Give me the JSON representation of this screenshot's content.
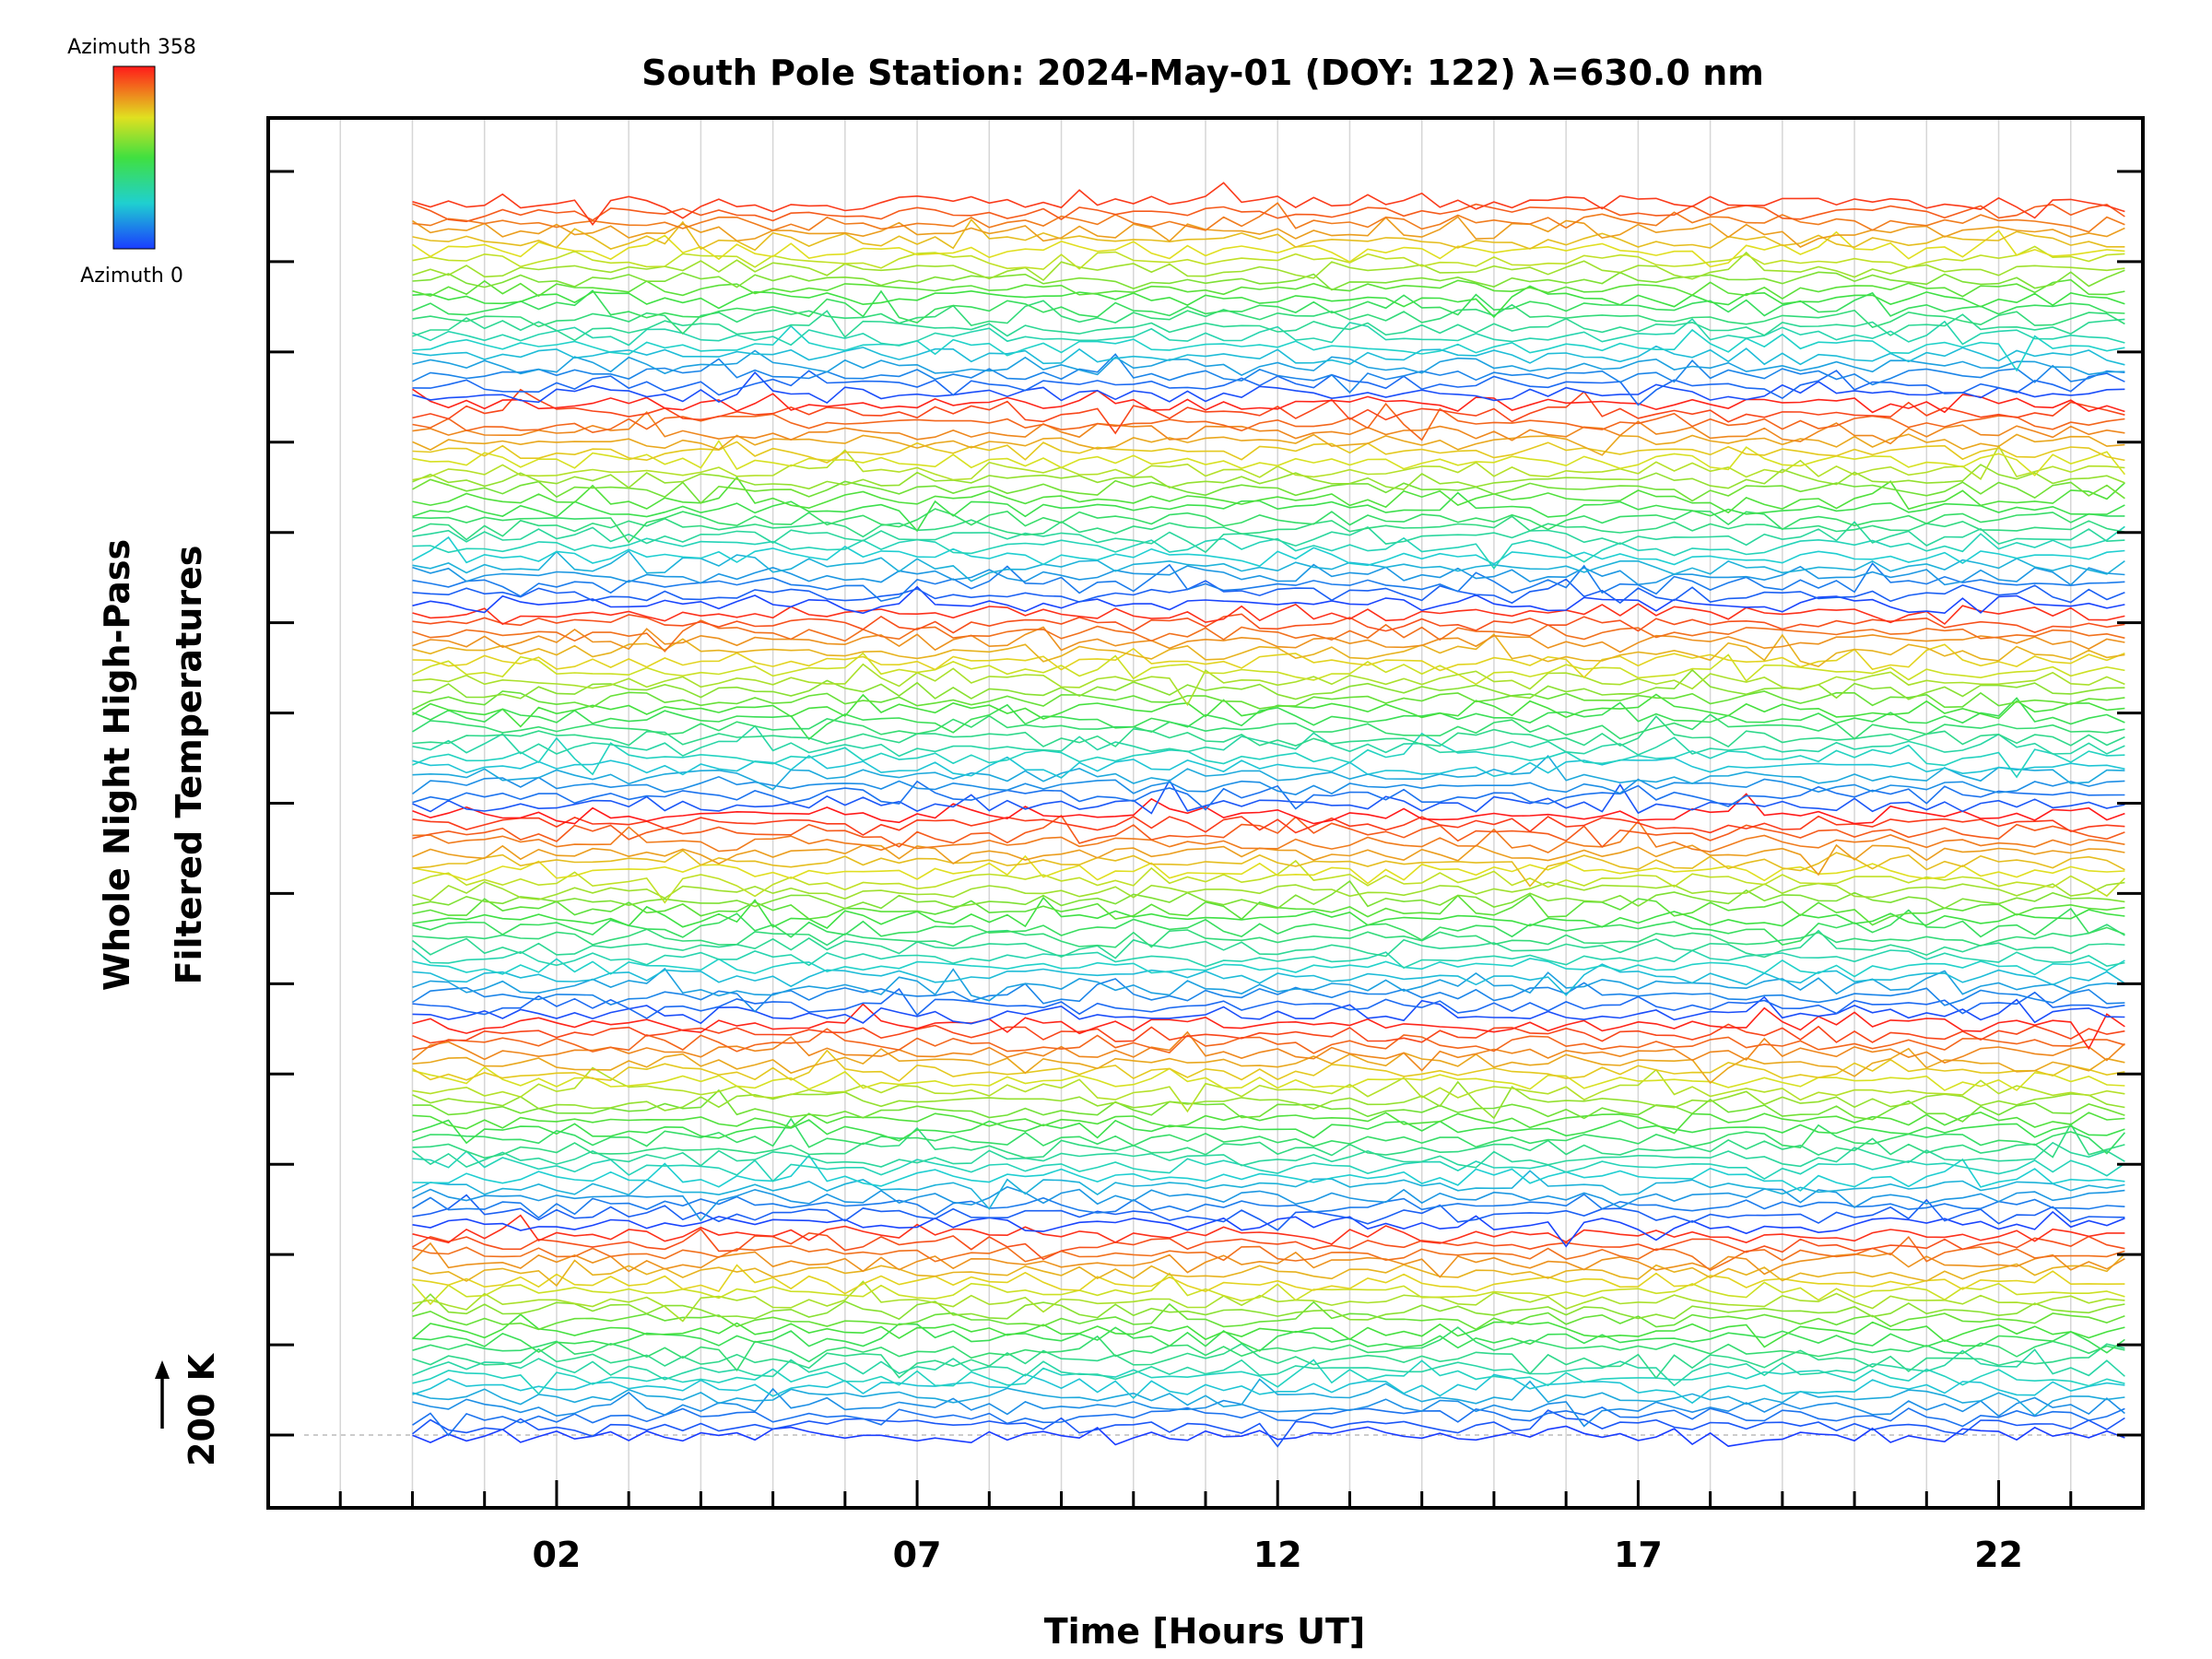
{
  "chart_data": {
    "type": "line",
    "title": "South Pole Station: 2024-May-01 (DOY: 122) λ=630.0 nm",
    "xlabel": "Time [Hours UT]",
    "ylabel_line1": "Whole Night High-Pass",
    "ylabel_line2": "Filtered Temperatures",
    "xlim": [
      -2,
      24
    ],
    "x_ticks": [
      2,
      7,
      12,
      17,
      22
    ],
    "x_tick_labels": [
      "02",
      "07",
      "12",
      "17",
      "22"
    ],
    "x_minor_step": 1,
    "y_major_tick_count": 15,
    "scale_marker": "200 K",
    "legend": {
      "top_label": "Azimuth 358",
      "bottom_label": "Azimuth 0",
      "placement": "top-left"
    },
    "azimuth_range": [
      0,
      358
    ],
    "series_count": 130,
    "series_start_hour": 0.0,
    "series_end_hour": 23.8,
    "series_sample_step_hours": 0.25,
    "noise_amplitude_K": 22,
    "series_note": "Stacked high-pass filtered temperature traces, offset vertically, color-coded by azimuth (blue=0° to red=358°), repeating in ~6 groups of azimuth scans."
  }
}
